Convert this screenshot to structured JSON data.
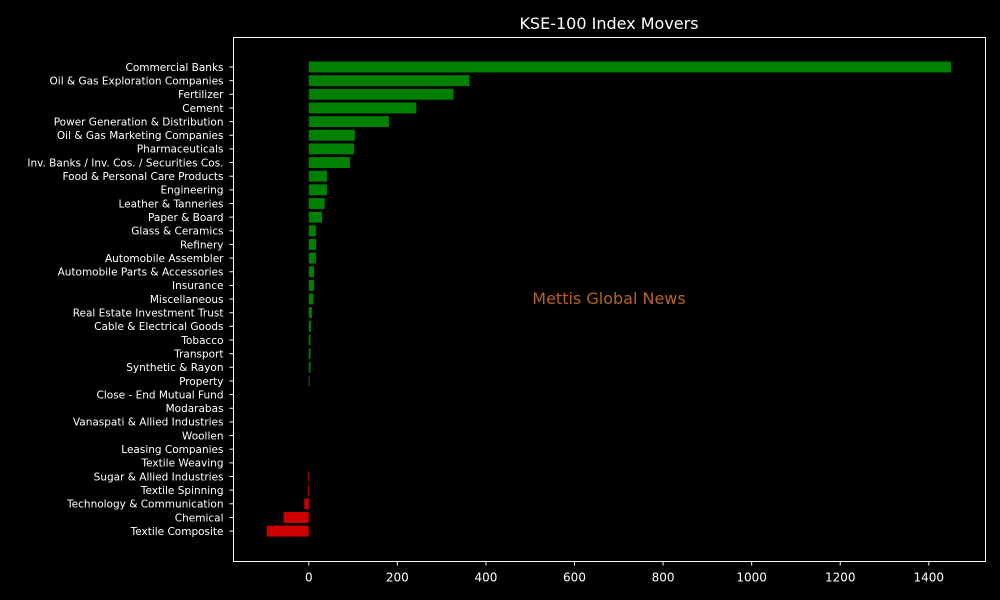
{
  "chart_data": {
    "type": "bar",
    "orientation": "horizontal",
    "title": "KSE-100 Index Movers",
    "xlabel": "",
    "ylabel": "",
    "watermark": "Mettis Global News",
    "xlim": [
      -170,
      1528
    ],
    "x_ticks": [
      0,
      200,
      400,
      600,
      800,
      1000,
      1200,
      1400
    ],
    "grid": false,
    "legend": "none",
    "colors": {
      "background": "#000000",
      "axes": "#ffffff",
      "text": "#ffffff",
      "positive": "#008000",
      "negative": "#cc0000",
      "watermark": "#b5651d"
    },
    "categories": [
      "Commercial Banks",
      "Oil & Gas Exploration Companies",
      "Fertilizer",
      "Cement",
      "Power Generation & Distribution",
      "Oil & Gas Marketing Companies",
      "Pharmaceuticals",
      "Inv. Banks / Inv. Cos. / Securities Cos.",
      "Food & Personal Care Products",
      "Engineering",
      "Leather & Tanneries",
      "Paper & Board",
      "Glass & Ceramics",
      "Refinery",
      "Automobile Assembler",
      "Automobile Parts & Accessories",
      "Insurance",
      "Miscellaneous",
      "Real Estate Investment Trust",
      "Cable & Electrical Goods",
      "Tobacco",
      "Transport",
      "Synthetic & Rayon",
      "Property",
      "Close - End Mutual Fund",
      "Modarabas",
      "Vanaspati & Allied Industries",
      "Woollen",
      "Leasing Companies",
      "Textile Weaving",
      "Sugar & Allied Industries",
      "Textile Spinning",
      "Technology & Communication",
      "Chemical",
      "Textile Composite"
    ],
    "values": [
      1450,
      363,
      327,
      243,
      181,
      104,
      102,
      93,
      41,
      41,
      36,
      30,
      16,
      16,
      16,
      12,
      12,
      10,
      7,
      5,
      4,
      4,
      4,
      2,
      0,
      0,
      0,
      0,
      0,
      0,
      -1,
      -2,
      -10,
      -57,
      -95
    ]
  }
}
